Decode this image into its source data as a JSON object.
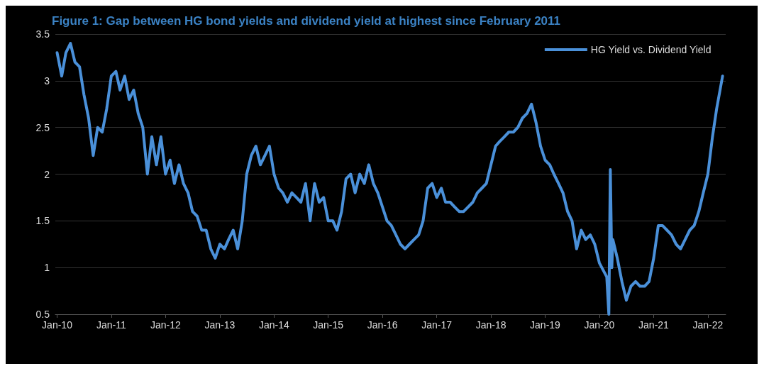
{
  "chart_data": {
    "type": "line",
    "title": "Figure 1: Gap between HG bond yields and dividend yield at highest since February 2011",
    "x": [
      "2010-01",
      "2010-02",
      "2010-03",
      "2010-04",
      "2010-05",
      "2010-06",
      "2010-07",
      "2010-08",
      "2010-09",
      "2010-10",
      "2010-11",
      "2010-12",
      "2011-01",
      "2011-02",
      "2011-03",
      "2011-04",
      "2011-05",
      "2011-06",
      "2011-07",
      "2011-08",
      "2011-09",
      "2011-10",
      "2011-11",
      "2011-12",
      "2012-01",
      "2012-02",
      "2012-03",
      "2012-04",
      "2012-05",
      "2012-06",
      "2012-07",
      "2012-08",
      "2012-09",
      "2012-10",
      "2012-11",
      "2012-12",
      "2013-01",
      "2013-02",
      "2013-03",
      "2013-04",
      "2013-05",
      "2013-06",
      "2013-07",
      "2013-08",
      "2013-09",
      "2013-10",
      "2013-11",
      "2013-12",
      "2014-01",
      "2014-02",
      "2014-03",
      "2014-04",
      "2014-05",
      "2014-06",
      "2014-07",
      "2014-08",
      "2014-09",
      "2014-10",
      "2014-11",
      "2014-12",
      "2015-01",
      "2015-02",
      "2015-03",
      "2015-04",
      "2015-05",
      "2015-06",
      "2015-07",
      "2015-08",
      "2015-09",
      "2015-10",
      "2015-11",
      "2015-12",
      "2016-01",
      "2016-02",
      "2016-03",
      "2016-04",
      "2016-05",
      "2016-06",
      "2016-07",
      "2016-08",
      "2016-09",
      "2016-10",
      "2016-11",
      "2016-12",
      "2017-01",
      "2017-02",
      "2017-03",
      "2017-04",
      "2017-05",
      "2017-06",
      "2017-07",
      "2017-08",
      "2017-09",
      "2017-10",
      "2017-11",
      "2017-12",
      "2018-01",
      "2018-02",
      "2018-03",
      "2018-04",
      "2018-05",
      "2018-06",
      "2018-07",
      "2018-08",
      "2018-09",
      "2018-10",
      "2018-11",
      "2018-12",
      "2019-01",
      "2019-02",
      "2019-03",
      "2019-04",
      "2019-05",
      "2019-06",
      "2019-07",
      "2019-08",
      "2019-09",
      "2019-10",
      "2019-11",
      "2019-12",
      "2020-01",
      "2020-02-20",
      "2020-03-05",
      "2020-03-15",
      "2020-03-25",
      "2020-04",
      "2020-05",
      "2020-06",
      "2020-07",
      "2020-08",
      "2020-09",
      "2020-10",
      "2020-11",
      "2020-12",
      "2021-01",
      "2021-02",
      "2021-03",
      "2021-04",
      "2021-05",
      "2021-06",
      "2021-07",
      "2021-08",
      "2021-09",
      "2021-10",
      "2021-11",
      "2021-12",
      "2022-01",
      "2022-02",
      "2022-03",
      "2022-04-10"
    ],
    "series": [
      {
        "name": "HG Yield vs. Dividend Yield",
        "color": "#4a90d9",
        "values": [
          3.3,
          3.05,
          3.3,
          3.4,
          3.2,
          3.15,
          2.85,
          2.6,
          2.2,
          2.5,
          2.45,
          2.7,
          3.05,
          3.1,
          2.9,
          3.05,
          2.8,
          2.9,
          2.65,
          2.5,
          2.0,
          2.4,
          2.1,
          2.4,
          2.0,
          2.15,
          1.9,
          2.1,
          1.9,
          1.8,
          1.6,
          1.55,
          1.4,
          1.4,
          1.2,
          1.1,
          1.25,
          1.2,
          1.3,
          1.4,
          1.2,
          1.5,
          2.0,
          2.2,
          2.3,
          2.1,
          2.2,
          2.3,
          2.0,
          1.85,
          1.8,
          1.7,
          1.8,
          1.75,
          1.7,
          1.9,
          1.5,
          1.9,
          1.7,
          1.75,
          1.5,
          1.5,
          1.4,
          1.6,
          1.95,
          2.0,
          1.8,
          2.0,
          1.9,
          2.1,
          1.9,
          1.8,
          1.65,
          1.5,
          1.45,
          1.35,
          1.25,
          1.2,
          1.25,
          1.3,
          1.35,
          1.5,
          1.85,
          1.9,
          1.75,
          1.85,
          1.7,
          1.7,
          1.65,
          1.6,
          1.6,
          1.65,
          1.7,
          1.8,
          1.85,
          1.9,
          2.1,
          2.3,
          2.35,
          2.4,
          2.45,
          2.45,
          2.5,
          2.6,
          2.65,
          2.75,
          2.55,
          2.3,
          2.15,
          2.1,
          2.0,
          1.9,
          1.8,
          1.6,
          1.5,
          1.2,
          1.4,
          1.3,
          1.35,
          1.25,
          1.05,
          0.9,
          0.5,
          2.05,
          1.0,
          1.3,
          1.1,
          0.85,
          0.65,
          0.8,
          0.85,
          0.8,
          0.8,
          0.85,
          1.1,
          1.45,
          1.45,
          1.4,
          1.35,
          1.25,
          1.2,
          1.3,
          1.4,
          1.45,
          1.6,
          1.8,
          2.0,
          2.4,
          2.7,
          3.05
        ]
      }
    ],
    "xlim": [
      "2009-12-20",
      "2022-05-01"
    ],
    "xticks": [
      {
        "value": "2010-01",
        "label": "Jan-10"
      },
      {
        "value": "2011-01",
        "label": "Jan-11"
      },
      {
        "value": "2012-01",
        "label": "Jan-12"
      },
      {
        "value": "2013-01",
        "label": "Jan-13"
      },
      {
        "value": "2014-01",
        "label": "Jan-14"
      },
      {
        "value": "2015-01",
        "label": "Jan-15"
      },
      {
        "value": "2016-01",
        "label": "Jan-16"
      },
      {
        "value": "2017-01",
        "label": "Jan-17"
      },
      {
        "value": "2018-01",
        "label": "Jan-18"
      },
      {
        "value": "2019-01",
        "label": "Jan-19"
      },
      {
        "value": "2020-01",
        "label": "Jan-20"
      },
      {
        "value": "2021-01",
        "label": "Jan-21"
      },
      {
        "value": "2022-01",
        "label": "Jan-22"
      }
    ],
    "ylim": [
      0.5,
      3.5
    ],
    "yticks": [
      0.5,
      1,
      1.5,
      2,
      2.5,
      3,
      3.5
    ],
    "grid": "y",
    "legend": "top right",
    "line_style": "solid",
    "marker": "none"
  }
}
